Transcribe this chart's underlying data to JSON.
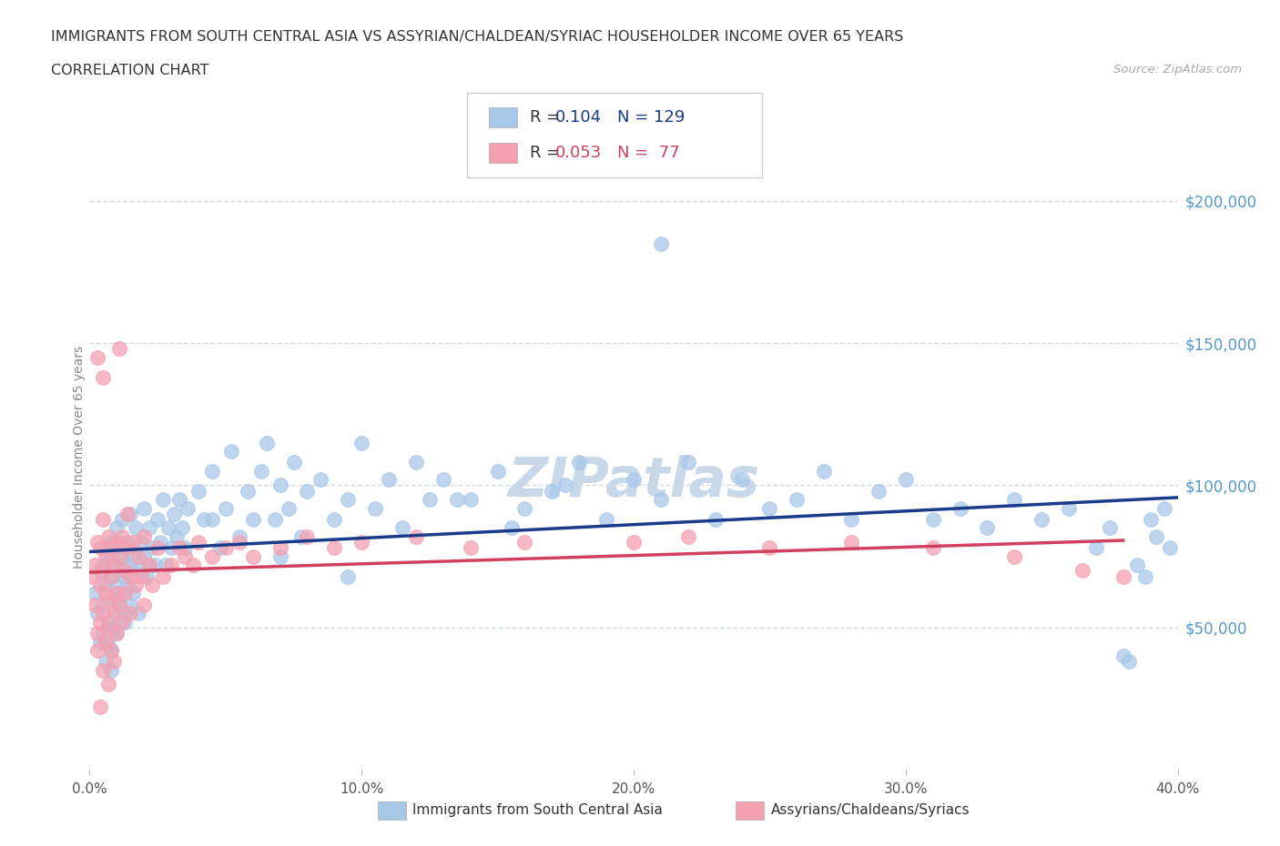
{
  "title_line1": "IMMIGRANTS FROM SOUTH CENTRAL ASIA VS ASSYRIAN/CHALDEAN/SYRIAC HOUSEHOLDER INCOME OVER 65 YEARS",
  "title_line2": "CORRELATION CHART",
  "source_text": "Source: ZipAtlas.com",
  "ylabel": "Householder Income Over 65 years",
  "xlim": [
    0.0,
    0.4
  ],
  "ylim": [
    0,
    220000
  ],
  "xtick_labels": [
    "0.0%",
    "10.0%",
    "20.0%",
    "30.0%",
    "40.0%"
  ],
  "xtick_values": [
    0.0,
    0.1,
    0.2,
    0.3,
    0.4
  ],
  "ytick_labels": [
    "$50,000",
    "$100,000",
    "$150,000",
    "$200,000"
  ],
  "ytick_values": [
    50000,
    100000,
    150000,
    200000
  ],
  "blue_R": 0.104,
  "blue_N": 129,
  "pink_R": 0.053,
  "pink_N": 77,
  "blue_color": "#a8c8e8",
  "pink_color": "#f4a0b0",
  "blue_line_color": "#1a3a8a",
  "pink_line_color": "#d04060",
  "legend_box_blue": "#a8c8e8",
  "legend_box_pink": "#f4a0b0",
  "watermark": "ZIPatlas",
  "watermark_color": "#c8d8e8",
  "grid_color": "#d0d8e0",
  "background_color": "#ffffff",
  "title_color": "#333333",
  "axis_label_color": "#888888",
  "ytick_color": "#5599cc",
  "xtick_color": "#555555",
  "blue_scatter_x": [
    0.002,
    0.003,
    0.004,
    0.004,
    0.005,
    0.005,
    0.005,
    0.006,
    0.006,
    0.007,
    0.007,
    0.007,
    0.008,
    0.008,
    0.008,
    0.008,
    0.009,
    0.009,
    0.009,
    0.01,
    0.01,
    0.01,
    0.01,
    0.01,
    0.011,
    0.011,
    0.012,
    0.012,
    0.012,
    0.013,
    0.013,
    0.014,
    0.014,
    0.015,
    0.015,
    0.015,
    0.016,
    0.016,
    0.017,
    0.018,
    0.018,
    0.019,
    0.02,
    0.02,
    0.021,
    0.022,
    0.023,
    0.024,
    0.025,
    0.026,
    0.027,
    0.028,
    0.029,
    0.03,
    0.031,
    0.032,
    0.033,
    0.034,
    0.035,
    0.036,
    0.04,
    0.042,
    0.045,
    0.048,
    0.05,
    0.052,
    0.055,
    0.058,
    0.06,
    0.063,
    0.065,
    0.068,
    0.07,
    0.073,
    0.075,
    0.078,
    0.08,
    0.085,
    0.09,
    0.095,
    0.1,
    0.105,
    0.11,
    0.115,
    0.12,
    0.125,
    0.13,
    0.14,
    0.15,
    0.16,
    0.17,
    0.18,
    0.19,
    0.2,
    0.21,
    0.22,
    0.23,
    0.24,
    0.25,
    0.26,
    0.27,
    0.28,
    0.29,
    0.3,
    0.31,
    0.32,
    0.33,
    0.34,
    0.35,
    0.36,
    0.37,
    0.375,
    0.38,
    0.382,
    0.385,
    0.388,
    0.39,
    0.392,
    0.395,
    0.397,
    0.21,
    0.175,
    0.155,
    0.135,
    0.095,
    0.07,
    0.045,
    0.022,
    0.013
  ],
  "blue_scatter_y": [
    62000,
    55000,
    70000,
    45000,
    58000,
    72000,
    48000,
    65000,
    38000,
    75000,
    52000,
    44000,
    68000,
    42000,
    80000,
    35000,
    60000,
    50000,
    72000,
    65000,
    78000,
    55000,
    48000,
    85000,
    70000,
    58000,
    75000,
    62000,
    88000,
    68000,
    52000,
    80000,
    65000,
    72000,
    58000,
    90000,
    75000,
    62000,
    85000,
    70000,
    55000,
    80000,
    75000,
    92000,
    68000,
    85000,
    78000,
    72000,
    88000,
    80000,
    95000,
    72000,
    85000,
    78000,
    90000,
    82000,
    95000,
    85000,
    78000,
    92000,
    98000,
    88000,
    105000,
    78000,
    92000,
    112000,
    82000,
    98000,
    88000,
    105000,
    115000,
    88000,
    100000,
    92000,
    108000,
    82000,
    98000,
    102000,
    88000,
    95000,
    115000,
    92000,
    102000,
    85000,
    108000,
    95000,
    102000,
    95000,
    105000,
    92000,
    98000,
    108000,
    88000,
    102000,
    95000,
    108000,
    88000,
    102000,
    92000,
    95000,
    105000,
    88000,
    98000,
    102000,
    88000,
    92000,
    85000,
    95000,
    88000,
    92000,
    78000,
    85000,
    40000,
    38000,
    72000,
    68000,
    88000,
    82000,
    92000,
    78000,
    185000,
    100000,
    85000,
    95000,
    68000,
    75000,
    88000,
    72000,
    55000
  ],
  "pink_scatter_x": [
    0.001,
    0.002,
    0.002,
    0.003,
    0.003,
    0.003,
    0.004,
    0.004,
    0.004,
    0.005,
    0.005,
    0.005,
    0.005,
    0.006,
    0.006,
    0.006,
    0.007,
    0.007,
    0.007,
    0.008,
    0.008,
    0.008,
    0.009,
    0.009,
    0.01,
    0.01,
    0.01,
    0.011,
    0.011,
    0.012,
    0.012,
    0.013,
    0.013,
    0.014,
    0.015,
    0.015,
    0.016,
    0.017,
    0.018,
    0.019,
    0.02,
    0.02,
    0.022,
    0.023,
    0.025,
    0.027,
    0.03,
    0.033,
    0.035,
    0.038,
    0.04,
    0.045,
    0.05,
    0.055,
    0.06,
    0.07,
    0.08,
    0.09,
    0.1,
    0.12,
    0.14,
    0.16,
    0.2,
    0.22,
    0.25,
    0.28,
    0.31,
    0.34,
    0.365,
    0.38,
    0.003,
    0.005,
    0.007,
    0.009,
    0.011,
    0.014,
    0.004
  ],
  "pink_scatter_y": [
    68000,
    58000,
    72000,
    48000,
    80000,
    42000,
    65000,
    52000,
    78000,
    35000,
    70000,
    55000,
    88000,
    62000,
    45000,
    75000,
    60000,
    82000,
    50000,
    68000,
    78000,
    42000,
    72000,
    55000,
    80000,
    62000,
    48000,
    75000,
    58000,
    82000,
    52000,
    70000,
    62000,
    78000,
    68000,
    55000,
    80000,
    65000,
    75000,
    68000,
    82000,
    58000,
    72000,
    65000,
    78000,
    68000,
    72000,
    78000,
    75000,
    72000,
    80000,
    75000,
    78000,
    80000,
    75000,
    78000,
    82000,
    78000,
    80000,
    82000,
    78000,
    80000,
    80000,
    82000,
    78000,
    80000,
    78000,
    75000,
    70000,
    68000,
    145000,
    138000,
    30000,
    38000,
    148000,
    90000,
    22000
  ]
}
